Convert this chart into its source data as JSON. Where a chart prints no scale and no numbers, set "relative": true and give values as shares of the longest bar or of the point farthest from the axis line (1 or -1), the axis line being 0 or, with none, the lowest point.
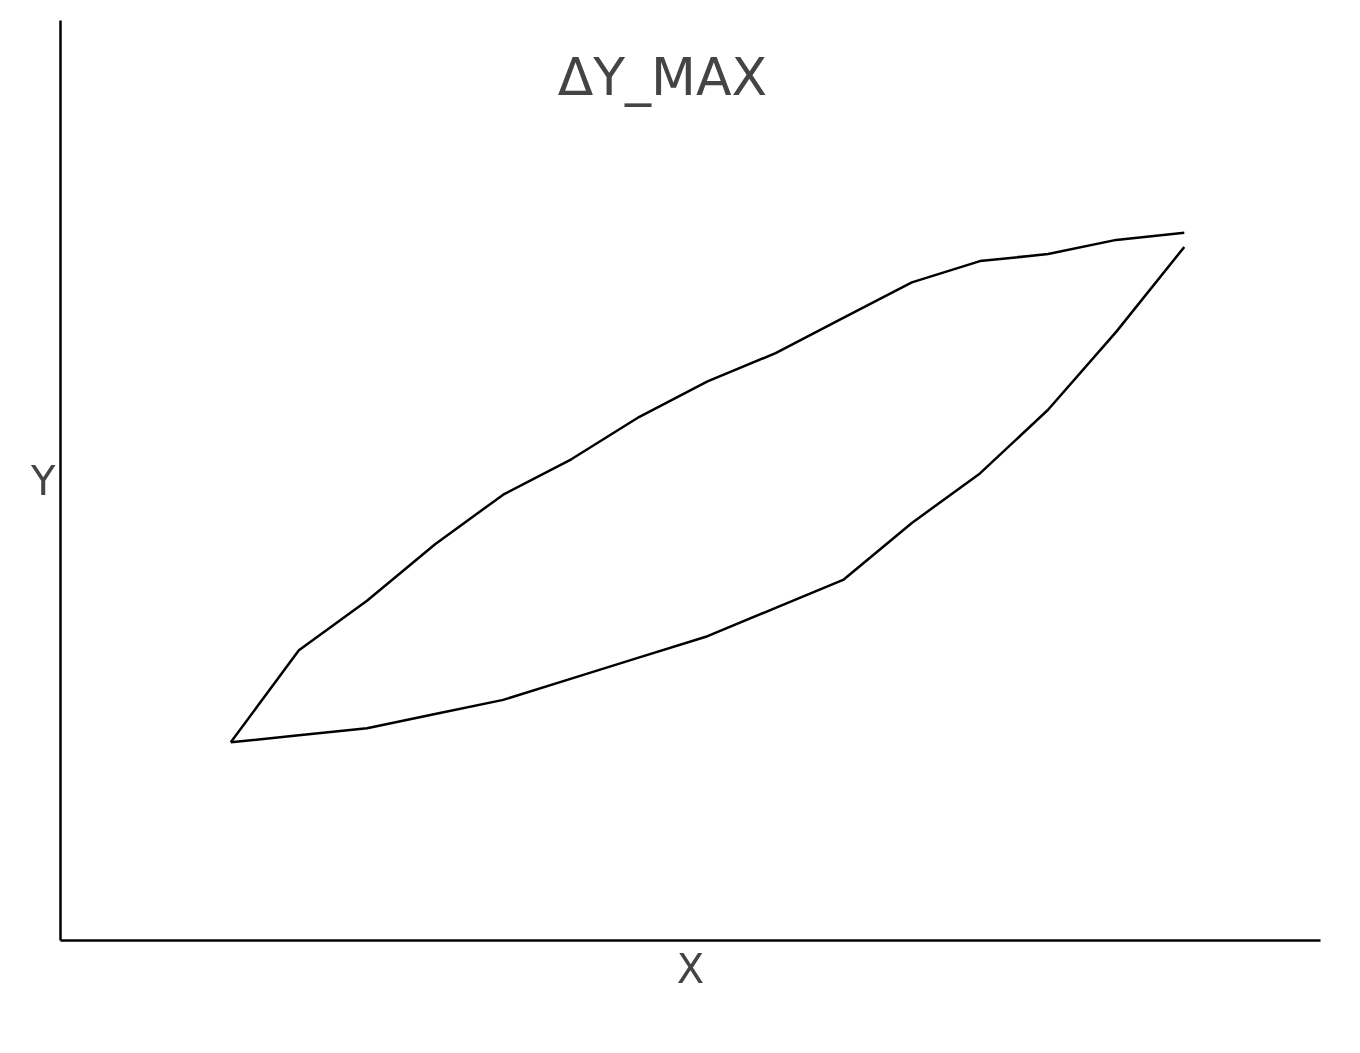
{
  "chart_data": {
    "type": "line",
    "relative": true,
    "xlabel": "X",
    "ylabel": "Y",
    "categories": [
      null,
      null,
      null,
      null,
      null,
      null,
      null,
      null,
      null,
      null,
      null,
      null,
      null,
      null,
      null
    ],
    "series": [
      {
        "color": "#000000",
        "values": [
          0.28,
          0.41,
          0.48,
          0.56,
          0.63,
          0.68,
          0.74,
          0.79,
          0.83,
          0.88,
          0.93,
          0.96,
          0.97,
          0.99,
          1
        ]
      },
      {
        "color": "#000000",
        "values": [
          0.28,
          0.29,
          0.3,
          0.32,
          0.34,
          0.37,
          0.4,
          0.43,
          0.47,
          0.51,
          0.59,
          0.66,
          0.75,
          0.86,
          0.98
        ]
      }
    ],
    "annotations": [
      "ΔY_MAX"
    ]
  }
}
